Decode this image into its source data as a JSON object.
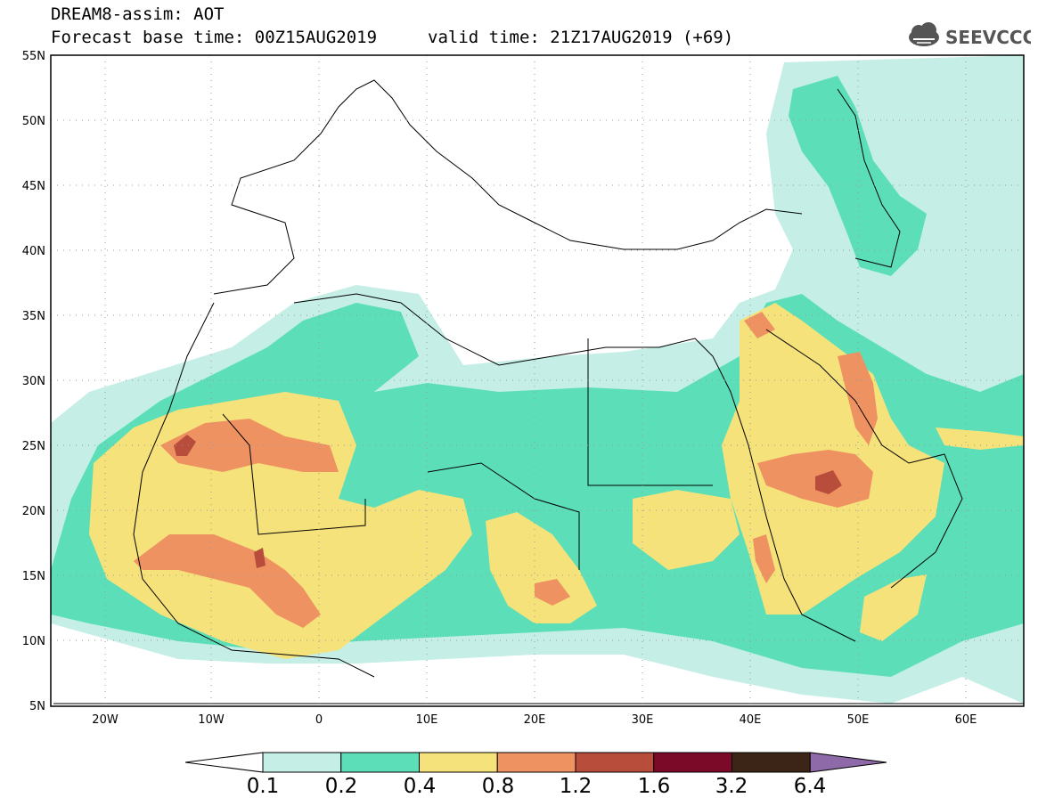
{
  "header": {
    "line1": "DREAM8-assim: AOT",
    "line2": "Forecast base time: 00Z15AUG2019",
    "valid_time": "valid time: 21Z17AUG2019 (+69)"
  },
  "logo": {
    "text": "SEEVCCC",
    "icon": "cloud-icon"
  },
  "map": {
    "lon_range": [
      -25,
      65
    ],
    "lat_range": [
      5,
      55
    ],
    "lat_labels": [
      "55N",
      "50N",
      "45N",
      "40N",
      "35N",
      "30N",
      "25N",
      "20N",
      "15N",
      "10N",
      "5N"
    ],
    "lon_labels": [
      "20W",
      "10W",
      "0",
      "10E",
      "20E",
      "30E",
      "40E",
      "50E",
      "60E"
    ]
  },
  "colorbar": {
    "colors": [
      "#ffffff",
      "#c5efe6",
      "#5cdfb8",
      "#f6e27a",
      "#ee9262",
      "#b84d3c",
      "#7a0a28",
      "#3c2416",
      "#8e6aa8"
    ],
    "labels": [
      "0.1",
      "0.2",
      "0.4",
      "0.8",
      "1.2",
      "1.6",
      "3.2",
      "6.4"
    ]
  }
}
